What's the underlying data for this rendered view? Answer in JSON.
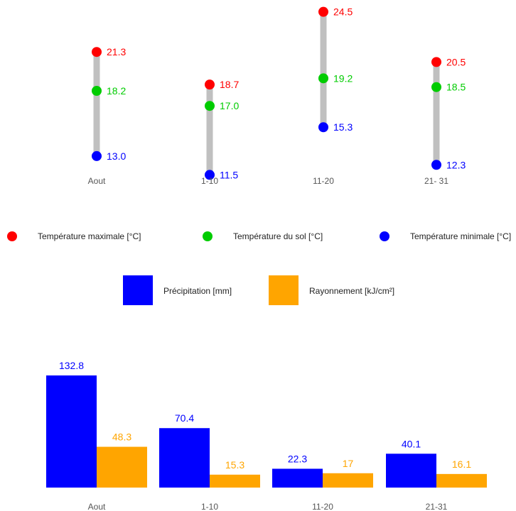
{
  "chart_data": [
    {
      "type": "dot-range",
      "categories": [
        "Aout",
        "1-10",
        "11-20",
        "21- 31"
      ],
      "series": [
        {
          "name": "Température maximale [°C]",
          "color": "#ff0000",
          "values": [
            21.3,
            18.7,
            24.5,
            20.5
          ],
          "labels": [
            "21.3",
            "18.7",
            "24.5",
            "20.5"
          ]
        },
        {
          "name": "Température du sol [°C]",
          "color": "#00cc00",
          "values": [
            18.2,
            17.0,
            19.2,
            18.5
          ],
          "labels": [
            "18.2",
            "17.0",
            "19.2",
            "18.5"
          ]
        },
        {
          "name": "Température minimale [°C]",
          "color": "#0000ff",
          "values": [
            13.0,
            11.5,
            15.3,
            12.3
          ],
          "labels": [
            "13.0",
            "11.5",
            "15.3",
            "12.3"
          ]
        }
      ],
      "range_color": "#c0c0c0",
      "legend_position": "bottom"
    },
    {
      "type": "bar",
      "categories": [
        "Aout",
        "1-10",
        "11-20",
        "21-31"
      ],
      "series": [
        {
          "name": "Précipitation [mm]",
          "color": "#0000ff",
          "values": [
            132.8,
            70.4,
            22.3,
            40.1
          ],
          "labels": [
            "132.8",
            "70.4",
            "22.3",
            "40.1"
          ]
        },
        {
          "name": "Rayonnement [kJ/cm²]",
          "color": "#ffa500",
          "values": [
            48.3,
            15.3,
            17,
            16.1
          ],
          "labels": [
            "48.3",
            "15.3",
            "17",
            "16.1"
          ]
        }
      ],
      "legend_position": "top"
    }
  ]
}
